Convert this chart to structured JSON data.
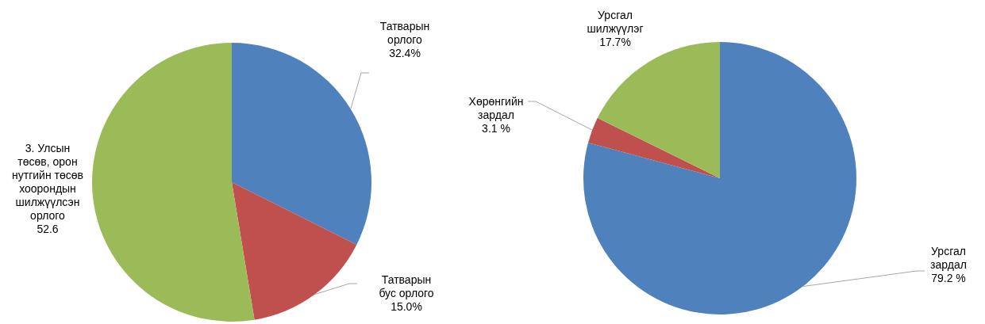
{
  "chart_data": [
    {
      "type": "pie",
      "categories": [
        "Татварын орлого",
        "Татварын бус орлого",
        "3. Улсын төсөв, орон нутгийн төсөв хоорондын шилжүүлсэн орлого"
      ],
      "values": [
        32.4,
        15.0,
        52.6
      ],
      "value_labels": [
        "32.4%",
        "15.0%",
        "52.6"
      ],
      "colors": [
        "#4f81bd",
        "#c0504d",
        "#9bbb59"
      ]
    },
    {
      "type": "pie",
      "categories": [
        "Урсгал зардал",
        "Хөрөнгийн зардал",
        "Урсгал шилжүүлэг"
      ],
      "values": [
        79.2,
        3.1,
        17.7
      ],
      "value_labels": [
        "79.2 %",
        "3.1 %",
        "17.7%"
      ],
      "colors": [
        "#4f81bd",
        "#c0504d",
        "#9bbb59"
      ]
    }
  ]
}
